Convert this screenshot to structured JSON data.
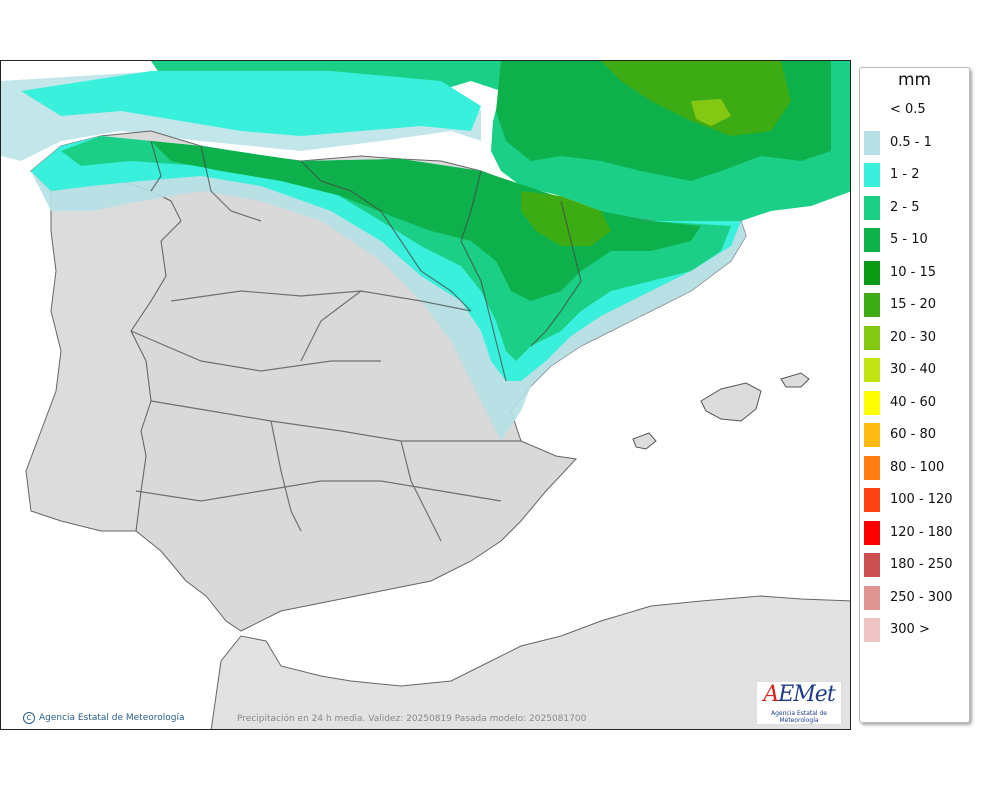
{
  "legend": {
    "unit": "mm",
    "items": [
      {
        "label": "< 0.5",
        "color": "#ffffff"
      },
      {
        "label": "0.5 - 1",
        "color": "#b4e0e6"
      },
      {
        "label": "1 - 2",
        "color": "#38f0dc"
      },
      {
        "label": "2 - 5",
        "color": "#1ccf86"
      },
      {
        "label": "5 - 10",
        "color": "#0db04b"
      },
      {
        "label": "10 - 15",
        "color": "#0a9a14"
      },
      {
        "label": "15 - 20",
        "color": "#3dac14"
      },
      {
        "label": "20 - 30",
        "color": "#84c814"
      },
      {
        "label": "30 - 40",
        "color": "#c2e414"
      },
      {
        "label": "40 - 60",
        "color": "#ffff00"
      },
      {
        "label": "60 - 80",
        "color": "#ffba14"
      },
      {
        "label": "80 - 100",
        "color": "#ff7e14"
      },
      {
        "label": "100 - 120",
        "color": "#ff4214"
      },
      {
        "label": "120 - 180",
        "color": "#ff0000"
      },
      {
        "label": "180 - 250",
        "color": "#cc5052"
      },
      {
        "label": "250 - 300",
        "color": "#e09494"
      },
      {
        "label": "300 >",
        "color": "#f0c4c4"
      }
    ]
  },
  "footer": {
    "credit_symbol": "C",
    "credit": "Agencia Estatal de Meteorología",
    "caption": "Precipitación en 24 h media. Validez: 20250819 Pasada modelo: 2025081700"
  },
  "logo": {
    "word_first": "A",
    "word_rest": "EMet",
    "subtitle": "Agencia Estatal de Meteorología"
  }
}
